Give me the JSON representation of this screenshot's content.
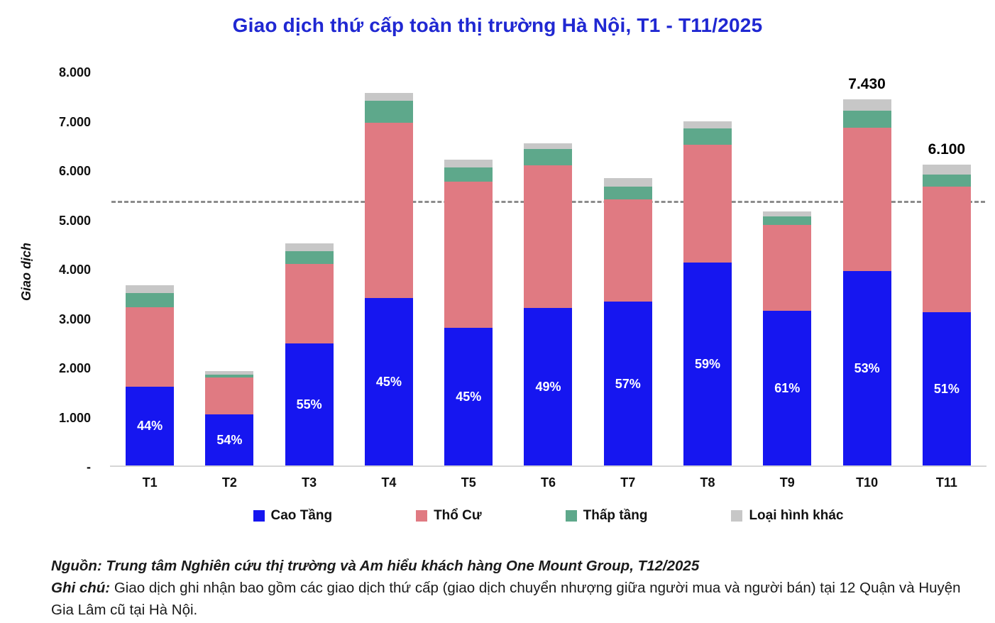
{
  "title": "Giao dịch thứ cấp toàn thị trường Hà Nội, T1 - T11/2025",
  "chart_data": {
    "type": "bar",
    "stacked": true,
    "title": "Giao dịch thứ cấp toàn thị trường Hà Nội, T1 - T11/2025",
    "ylabel": "Giao dịch",
    "xlabel": "",
    "ylim": [
      0,
      8000
    ],
    "ytick_step": 1000,
    "ytick_labels": [
      "-",
      "1.000",
      "2.000",
      "3.000",
      "4.000",
      "5.000",
      "6.000",
      "7.000",
      "8.000"
    ],
    "grid": false,
    "legend_position": "bottom",
    "categories": [
      "T1",
      "T2",
      "T3",
      "T4",
      "T5",
      "T6",
      "T7",
      "T8",
      "T9",
      "T10",
      "T11"
    ],
    "series": [
      {
        "name": "Cao Tầng",
        "color": "#1616f0",
        "values": [
          1600,
          1030,
          2480,
          3400,
          2790,
          3200,
          3320,
          4120,
          3140,
          3940,
          3110
        ]
      },
      {
        "name": "Thổ Cư",
        "color": "#e07a82",
        "values": [
          1610,
          750,
          1600,
          3550,
          2960,
          2880,
          2080,
          2380,
          1740,
          2910,
          2540
        ]
      },
      {
        "name": "Thấp tầng",
        "color": "#5ea88b",
        "values": [
          290,
          60,
          270,
          450,
          300,
          340,
          250,
          330,
          170,
          350,
          250
        ]
      },
      {
        "name": "Loại hình khác",
        "color": "#c7c7c7",
        "values": [
          150,
          80,
          150,
          150,
          150,
          110,
          180,
          150,
          100,
          230,
          200
        ]
      }
    ],
    "bar_labels": [
      "44%",
      "54%",
      "55%",
      "45%",
      "45%",
      "49%",
      "57%",
      "59%",
      "61%",
      "53%",
      "51%"
    ],
    "total_labels": {
      "T10": "7.430",
      "T11": "6.100"
    },
    "reference_line": 5330,
    "reference_line_color": "#8c8c8c",
    "title_color": "#2028d2"
  },
  "footer": {
    "source_label": "Nguồn:",
    "source_text": " Trung tâm Nghiên cứu thị trường và Am hiểu khách hàng One Mount Group, T12/2025",
    "note_label": "Ghi chú:",
    "note_text": " Giao dịch ghi nhận bao gồm các giao dịch thứ cấp (giao dịch chuyển nhượng giữa người mua và người bán) tại 12 Quận và Huyện Gia Lâm cũ tại Hà Nội."
  }
}
